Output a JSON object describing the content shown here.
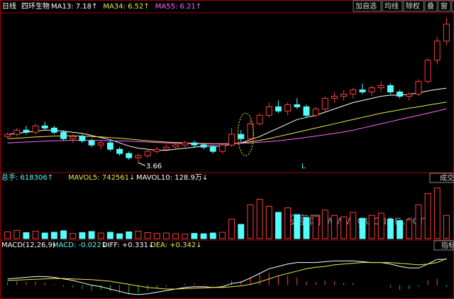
{
  "toolbar": [
    "加自选",
    "均线",
    "除权",
    "叠",
    "窗",
    "预测"
  ],
  "watermark": "股富网 www.gucuan.com",
  "chart_data": [
    {
      "type": "candlestick",
      "period": "日线",
      "title": "四环生物",
      "up_color": "#ff3c3c",
      "down_color": "#54fcfc",
      "annotations": [
        "3.66",
        "L"
      ],
      "ylim": [
        3.3,
        10.6
      ],
      "ohlc": [
        [
          4.9,
          5.1,
          4.8,
          5.0
        ],
        [
          5.0,
          5.3,
          4.9,
          5.2
        ],
        [
          5.2,
          5.4,
          5.0,
          5.1
        ],
        [
          5.1,
          5.5,
          5.0,
          5.4
        ],
        [
          5.4,
          5.6,
          5.2,
          5.3
        ],
        [
          5.3,
          5.4,
          5.0,
          5.1
        ],
        [
          5.1,
          5.2,
          4.7,
          4.8
        ],
        [
          4.8,
          5.0,
          4.6,
          4.9
        ],
        [
          4.9,
          5.0,
          4.6,
          4.7
        ],
        [
          4.7,
          4.8,
          4.4,
          4.5
        ],
        [
          4.5,
          4.7,
          4.3,
          4.6
        ],
        [
          4.6,
          4.7,
          4.2,
          4.3
        ],
        [
          4.3,
          4.4,
          4.0,
          4.1
        ],
        [
          4.1,
          4.2,
          3.8,
          3.9
        ],
        [
          3.9,
          4.1,
          3.66,
          4.0
        ],
        [
          4.0,
          4.3,
          3.9,
          4.2
        ],
        [
          4.2,
          4.4,
          4.1,
          4.3
        ],
        [
          4.3,
          4.5,
          4.2,
          4.4
        ],
        [
          4.4,
          4.6,
          4.3,
          4.5
        ],
        [
          4.5,
          4.7,
          4.4,
          4.6
        ],
        [
          4.6,
          4.7,
          4.4,
          4.5
        ],
        [
          4.5,
          4.6,
          4.3,
          4.4
        ],
        [
          4.4,
          4.5,
          4.1,
          4.2
        ],
        [
          4.2,
          4.6,
          4.1,
          4.5
        ],
        [
          4.5,
          5.3,
          4.4,
          5.0
        ],
        [
          5.0,
          5.2,
          4.6,
          4.8
        ],
        [
          4.8,
          5.7,
          4.7,
          5.5
        ],
        [
          5.5,
          6.0,
          5.4,
          5.9
        ],
        [
          5.9,
          6.5,
          5.8,
          6.3
        ],
        [
          6.3,
          6.6,
          6.0,
          6.1
        ],
        [
          6.1,
          6.5,
          5.9,
          6.4
        ],
        [
          6.4,
          6.7,
          6.2,
          6.3
        ],
        [
          6.3,
          6.4,
          5.8,
          5.9
        ],
        [
          5.9,
          6.3,
          5.8,
          6.2
        ],
        [
          6.2,
          6.8,
          6.1,
          6.7
        ],
        [
          6.7,
          7.0,
          6.5,
          6.8
        ],
        [
          6.8,
          7.1,
          6.6,
          6.9
        ],
        [
          6.9,
          7.2,
          6.7,
          7.1
        ],
        [
          7.1,
          7.4,
          6.9,
          7.0
        ],
        [
          7.0,
          7.3,
          6.8,
          7.2
        ],
        [
          7.2,
          7.5,
          7.0,
          7.3
        ],
        [
          7.3,
          7.4,
          6.9,
          7.0
        ],
        [
          7.0,
          7.1,
          6.7,
          6.8
        ],
        [
          6.8,
          7.0,
          6.6,
          6.9
        ],
        [
          6.9,
          7.6,
          6.8,
          7.5
        ],
        [
          7.5,
          8.6,
          7.4,
          8.5
        ],
        [
          8.5,
          9.6,
          8.3,
          9.4
        ],
        [
          9.4,
          10.5,
          9.2,
          10.2
        ]
      ],
      "series": [
        {
          "name": "MA13: 7.18↑",
          "color": "#ffffff",
          "values": [
            5.0,
            5.05,
            5.1,
            5.15,
            5.2,
            5.2,
            5.15,
            5.1,
            5.05,
            4.95,
            4.85,
            4.75,
            4.6,
            4.45,
            4.35,
            4.3,
            4.25,
            4.25,
            4.3,
            4.35,
            4.4,
            4.45,
            4.45,
            4.45,
            4.55,
            4.6,
            4.75,
            4.9,
            5.1,
            5.3,
            5.5,
            5.7,
            5.8,
            5.9,
            6.05,
            6.2,
            6.35,
            6.5,
            6.6,
            6.7,
            6.8,
            6.85,
            6.85,
            6.9,
            6.95,
            7.05,
            7.12,
            7.18
          ]
        },
        {
          "name": "MA34: 6.52↑",
          "color": "#e8e84a",
          "values": [
            4.8,
            4.82,
            4.85,
            4.88,
            4.9,
            4.92,
            4.93,
            4.93,
            4.92,
            4.9,
            4.88,
            4.85,
            4.82,
            4.78,
            4.74,
            4.7,
            4.67,
            4.64,
            4.62,
            4.6,
            4.58,
            4.57,
            4.56,
            4.56,
            4.57,
            4.6,
            4.65,
            4.72,
            4.8,
            4.9,
            5.0,
            5.1,
            5.2,
            5.3,
            5.4,
            5.5,
            5.6,
            5.7,
            5.8,
            5.9,
            6.0,
            6.08,
            6.16,
            6.24,
            6.3,
            6.38,
            6.45,
            6.52
          ]
        },
        {
          "name": "MA55: 6.21↑",
          "color": "#ff66ff",
          "values": [
            4.6,
            4.62,
            4.64,
            4.66,
            4.68,
            4.7,
            4.71,
            4.72,
            4.72,
            4.72,
            4.71,
            4.7,
            4.69,
            4.68,
            4.66,
            4.64,
            4.62,
            4.6,
            4.58,
            4.57,
            4.56,
            4.55,
            4.55,
            4.55,
            4.56,
            4.58,
            4.6,
            4.63,
            4.66,
            4.7,
            4.75,
            4.8,
            4.86,
            4.92,
            4.98,
            5.05,
            5.12,
            5.2,
            5.3,
            5.4,
            5.5,
            5.6,
            5.7,
            5.8,
            5.9,
            6.0,
            6.1,
            6.21
          ]
        }
      ]
    },
    {
      "type": "volume",
      "title": "总手: 618306↑",
      "legend": [
        "MAVOL5: 742561↓",
        "MAVOL10: 128.9万↓"
      ],
      "button": "成交",
      "ylim": [
        0,
        1400000
      ],
      "values": [
        180000,
        220000,
        160000,
        200000,
        150000,
        170000,
        210000,
        140000,
        160000,
        190000,
        150000,
        170000,
        130000,
        180000,
        200000,
        160000,
        140000,
        150000,
        130000,
        120000,
        140000,
        130000,
        150000,
        170000,
        520000,
        380000,
        900000,
        1050000,
        860000,
        700000,
        820000,
        640000,
        560000,
        600000,
        760000,
        620000,
        580000,
        700000,
        540000,
        620000,
        680000,
        520000,
        480000,
        500000,
        900000,
        1200000,
        1350000,
        618306
      ]
    },
    {
      "type": "macd",
      "title": "MACD(12,26,9)",
      "legend": [
        "MACD: -0.022↓",
        "DIFF: +0.331↓",
        "DEA: +0.342↓"
      ],
      "button": "指标",
      "ylim": [
        -0.15,
        0.45
      ],
      "up_color": "#ff3c3c",
      "down_color": "#00d000",
      "values": [
        0.04,
        0.05,
        0.04,
        0.05,
        0.03,
        0.01,
        -0.02,
        -0.03,
        -0.05,
        -0.07,
        -0.06,
        -0.08,
        -0.1,
        -0.12,
        -0.1,
        -0.07,
        -0.04,
        -0.02,
        0.0,
        0.02,
        0.02,
        0.01,
        -0.01,
        0.01,
        0.06,
        0.05,
        0.1,
        0.14,
        0.16,
        0.12,
        0.12,
        0.1,
        0.05,
        0.04,
        0.06,
        0.05,
        0.03,
        0.03,
        0.0,
        0.0,
        0.0,
        -0.03,
        -0.06,
        -0.05,
        -0.02,
        0.06,
        0.08,
        -0.022
      ],
      "series": [
        {
          "name": "DIFF",
          "color": "#ffffff",
          "values": [
            0.08,
            0.09,
            0.1,
            0.11,
            0.11,
            0.1,
            0.08,
            0.06,
            0.03,
            0.0,
            -0.02,
            -0.05,
            -0.08,
            -0.11,
            -0.12,
            -0.11,
            -0.09,
            -0.07,
            -0.05,
            -0.03,
            -0.02,
            -0.02,
            -0.03,
            -0.02,
            0.02,
            0.04,
            0.09,
            0.15,
            0.21,
            0.24,
            0.27,
            0.29,
            0.29,
            0.29,
            0.3,
            0.31,
            0.31,
            0.31,
            0.3,
            0.29,
            0.29,
            0.27,
            0.24,
            0.22,
            0.22,
            0.27,
            0.33,
            0.331
          ]
        },
        {
          "name": "DEA",
          "color": "#e8e84a",
          "values": [
            0.06,
            0.065,
            0.07,
            0.075,
            0.08,
            0.085,
            0.085,
            0.08,
            0.075,
            0.07,
            0.06,
            0.05,
            0.03,
            0.01,
            -0.01,
            -0.03,
            -0.04,
            -0.05,
            -0.05,
            -0.045,
            -0.04,
            -0.035,
            -0.03,
            -0.03,
            -0.02,
            -0.01,
            0.01,
            0.04,
            0.08,
            0.12,
            0.15,
            0.18,
            0.21,
            0.23,
            0.24,
            0.26,
            0.27,
            0.28,
            0.29,
            0.29,
            0.29,
            0.29,
            0.28,
            0.27,
            0.26,
            0.27,
            0.29,
            0.342
          ]
        }
      ]
    }
  ]
}
